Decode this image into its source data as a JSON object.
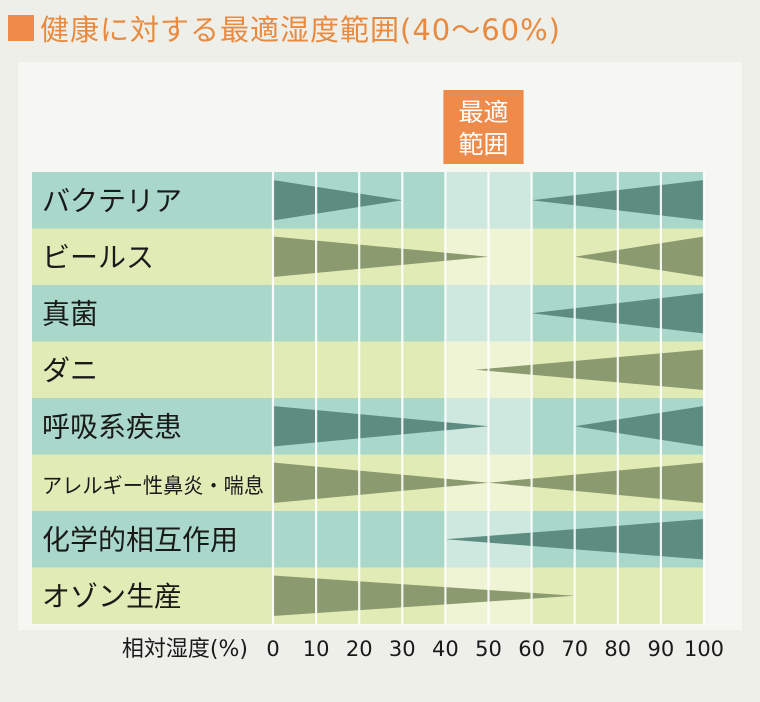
{
  "title": "健康に対する最適湿度範囲(40〜60%)",
  "colors": {
    "title": "#e88a3f",
    "optimal_box": "#ee8b4a",
    "row_teal": "#a9d8cb",
    "row_yellow": "#e1ebb5",
    "optimal_teal": "#cfe8df",
    "optimal_yellow": "#eff4d4",
    "wedge_teal_rows": "#5d8c80",
    "wedge_yellow_rows": "#8c9a6f",
    "gridline": "#ffffff"
  },
  "chart_data": {
    "type": "range-wedge",
    "title": "健康に対する最適湿度範囲(40〜60%)",
    "optimal_label": "最適範囲",
    "optimal_range": [
      40,
      60
    ],
    "xlabel": "相対湿度(%)",
    "xlim": [
      0,
      100
    ],
    "xticks": [
      0,
      10,
      20,
      30,
      40,
      50,
      60,
      70,
      80,
      90,
      100
    ],
    "grid": true,
    "categories": [
      "バクテリア",
      "ビールス",
      "真菌",
      "ダニ",
      "呼吸系疾患",
      "アレルギー性鼻炎・喘息",
      "化学的相互作用",
      "オゾン生産"
    ],
    "rows": [
      {
        "label": "バクテリア",
        "low_end": 30,
        "high_start": 60
      },
      {
        "label": "ビールス",
        "low_end": 50,
        "high_start": 70
      },
      {
        "label": "真菌",
        "low_end": null,
        "high_start": 60
      },
      {
        "label": "ダニ",
        "low_end": null,
        "high_start": 47
      },
      {
        "label": "呼吸系疾患",
        "low_end": 50,
        "high_start": 70
      },
      {
        "label": "アレルギー性鼻炎・喘息",
        "low_end": 50,
        "high_start": 50
      },
      {
        "label": "化学的相互作用",
        "low_end": null,
        "high_start": 40
      },
      {
        "label": "オゾン生産",
        "low_end": 70,
        "high_start": null
      }
    ]
  }
}
